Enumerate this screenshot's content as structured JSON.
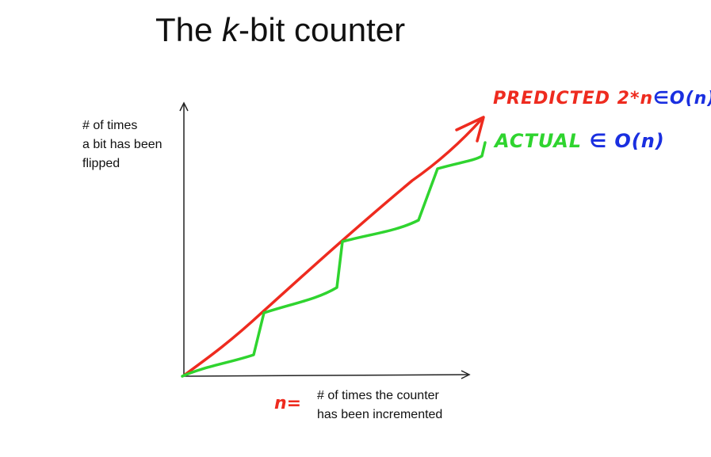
{
  "title": {
    "prefix": "The ",
    "italic": "k",
    "suffix": "-bit counter"
  },
  "y_axis_label": [
    "# of times",
    "a bit has been",
    "flipped"
  ],
  "x_axis_label": [
    "# of times the counter",
    "has been incremented"
  ],
  "annotations": {
    "predicted": {
      "text": "PREDICTED",
      "expr": "2*n",
      "bound": "∈O(n)"
    },
    "actual": {
      "text": "ACTUAL",
      "bound": "∈ O(n)"
    },
    "n_mark": "n="
  },
  "colors": {
    "predicted": "#ee2b1f",
    "actual": "#2fd42f",
    "bound": "#1a2fe0",
    "axis": "#222222"
  }
}
